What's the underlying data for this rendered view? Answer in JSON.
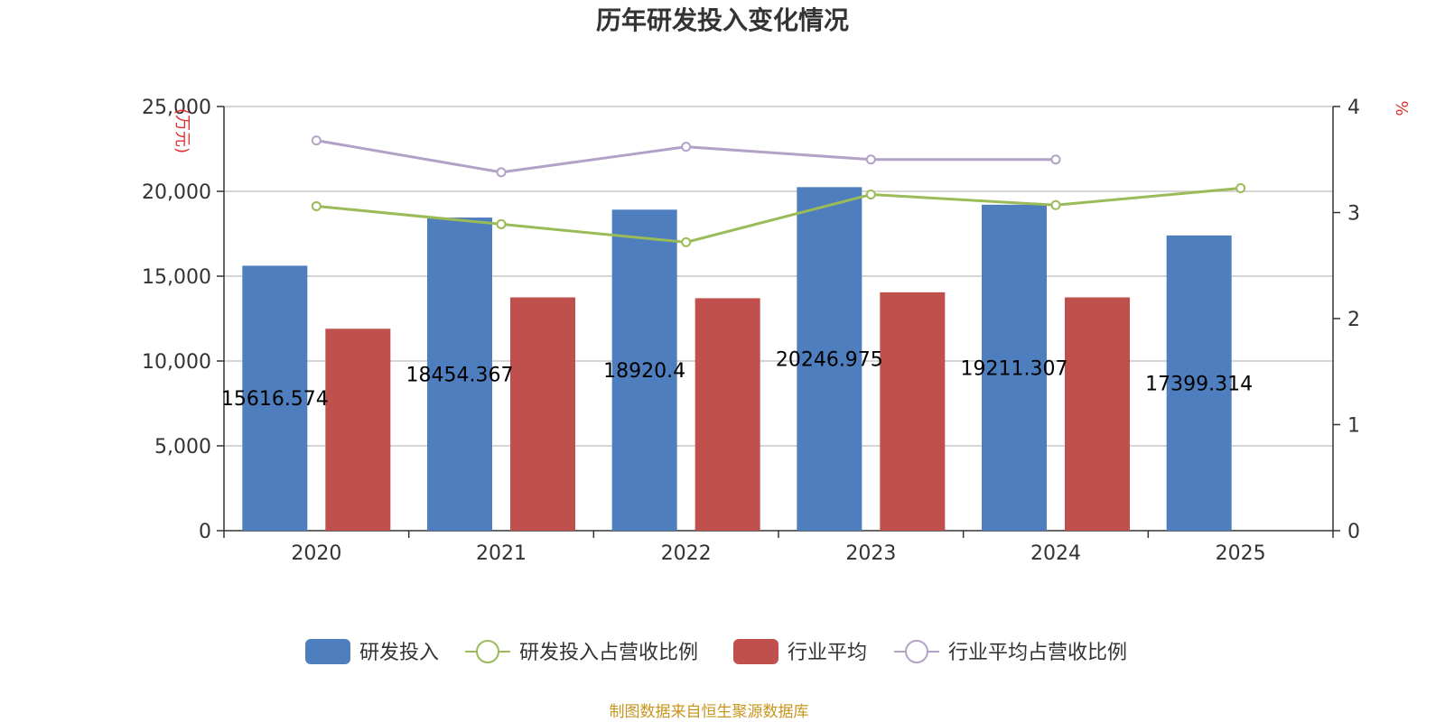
{
  "chart_data": {
    "type": "bar",
    "title": "历年研发投入变化情况",
    "categories": [
      "2020",
      "2021",
      "2022",
      "2023",
      "2024",
      "2025"
    ],
    "left_axis": {
      "unit": "(万元)",
      "ylim": [
        0,
        25000
      ],
      "ticks": [
        "0",
        "5,000",
        "10,000",
        "15,000",
        "20,000",
        "25,000"
      ],
      "tick_values": [
        0,
        5000,
        10000,
        15000,
        20000,
        25000
      ]
    },
    "right_axis": {
      "unit": "%",
      "ylim": [
        0,
        4
      ],
      "ticks": [
        "0",
        "1",
        "2",
        "3",
        "4"
      ],
      "tick_values": [
        0,
        1,
        2,
        3,
        4
      ]
    },
    "series": [
      {
        "name": "研发投入",
        "kind": "bar",
        "axis": "left",
        "color": "#4e7ebd",
        "values": [
          15616.574,
          18454.367,
          18920.4,
          20246.975,
          19211.307,
          17399.314
        ],
        "labels": [
          "15616.574",
          "18454.367",
          "18920.4",
          "20246.975",
          "19211.307",
          "17399.314"
        ]
      },
      {
        "name": "行业平均",
        "kind": "bar",
        "axis": "left",
        "color": "#c0504d",
        "values": [
          11900,
          13750,
          13700,
          14050,
          13750,
          null
        ]
      },
      {
        "name": "研发投入占营收比例",
        "kind": "line",
        "axis": "right",
        "color": "#9bbb59",
        "values": [
          3.06,
          2.89,
          2.72,
          3.17,
          3.07,
          3.23
        ]
      },
      {
        "name": "行业平均占营收比例",
        "kind": "line",
        "axis": "right",
        "color": "#b3a2c7",
        "values": [
          3.68,
          3.38,
          3.62,
          3.5,
          3.5,
          null
        ]
      }
    ],
    "legend": {
      "position": "bottom",
      "items": [
        "研发投入",
        "研发投入占营收比例",
        "行业平均",
        "行业平均占营收比例"
      ]
    },
    "grid": true
  },
  "source": "制图数据来自恒生聚源数据库"
}
